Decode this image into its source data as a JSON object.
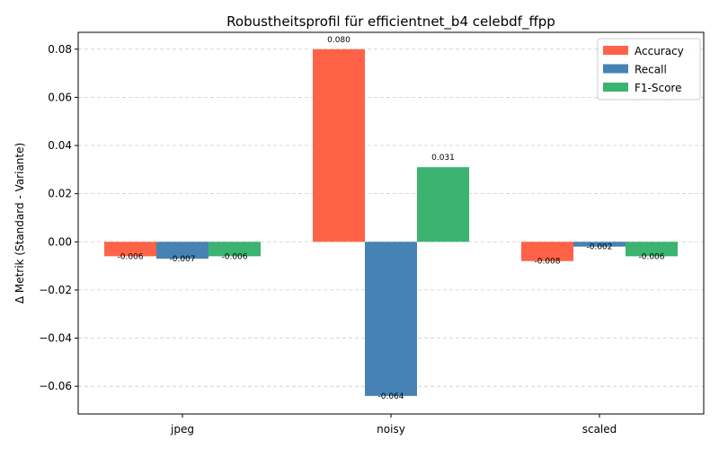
{
  "chart_data": {
    "type": "bar",
    "title": "Robustheitsprofil für efficientnet_b4 celebdf_ffpp",
    "xlabel": "",
    "ylabel": "Δ Metrik (Standard - Variante)",
    "categories": [
      "jpeg",
      "noisy",
      "scaled"
    ],
    "series": [
      {
        "name": "Accuracy",
        "color": "#ff6347",
        "values": [
          -0.006,
          0.08,
          -0.008
        ],
        "labels": [
          "-0.006",
          "0.080",
          "-0.008"
        ]
      },
      {
        "name": "Recall",
        "color": "#4682b4",
        "values": [
          -0.007,
          -0.064,
          -0.002
        ],
        "labels": [
          "-0.007",
          "-0.064",
          "-0.002"
        ]
      },
      {
        "name": "F1-Score",
        "color": "#3cb371",
        "values": [
          -0.006,
          0.031,
          -0.006
        ],
        "labels": [
          "-0.006",
          "0.031",
          "-0.006"
        ]
      }
    ],
    "ylim": [
      -0.0715,
      0.087
    ],
    "yticks": [
      -0.06,
      -0.04,
      -0.02,
      0.0,
      0.02,
      0.04,
      0.06,
      0.08
    ],
    "ytick_labels": [
      "−0.06",
      "−0.04",
      "−0.02",
      "0.00",
      "0.02",
      "0.04",
      "0.06",
      "0.08"
    ],
    "grid": true,
    "legend_position": "top-right"
  }
}
